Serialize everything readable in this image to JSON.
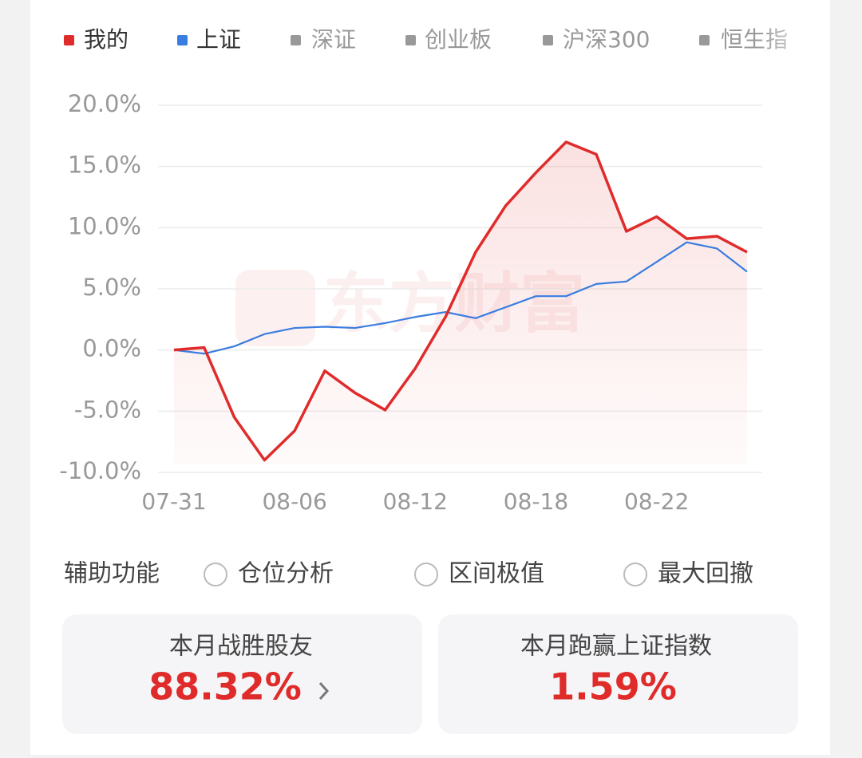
{
  "chart_data": {
    "type": "line",
    "categories": [
      "07-31",
      null,
      null,
      null,
      "08-06",
      null,
      null,
      null,
      "08-12",
      null,
      null,
      null,
      "08-18",
      null,
      null,
      null,
      "08-22",
      null,
      null,
      null
    ],
    "series": [
      {
        "name": "我的",
        "color": "#e02b2b",
        "values": [
          0.0,
          0.2,
          -5.5,
          -9.0,
          -6.6,
          -1.7,
          -3.5,
          -4.9,
          -1.5,
          2.7,
          8.0,
          11.8,
          14.5,
          17.0,
          16.0,
          9.7,
          10.9,
          9.1,
          9.3,
          8.0
        ]
      },
      {
        "name": "上证",
        "color": "#3a7de0",
        "values": [
          0.0,
          -0.3,
          0.3,
          1.3,
          1.8,
          1.9,
          1.8,
          2.2,
          2.7,
          3.1,
          2.6,
          3.5,
          4.4,
          4.4,
          5.4,
          5.6,
          7.2,
          8.8,
          8.3,
          6.4
        ]
      }
    ],
    "inactive_series": [
      {
        "name": "深证",
        "color": "#999999"
      },
      {
        "name": "创业板",
        "color": "#999999"
      },
      {
        "name": "沪深300",
        "color": "#999999"
      },
      {
        "name": "恒生指",
        "color": "#999999"
      }
    ],
    "ylim": [
      -10,
      20
    ],
    "yticks": [
      {
        "value": -10,
        "label": "-10.0%"
      },
      {
        "value": -5,
        "label": "-5.0%"
      },
      {
        "value": 0,
        "label": "0.0%"
      },
      {
        "value": 5,
        "label": "5.0%"
      },
      {
        "value": 10,
        "label": "10.0%"
      },
      {
        "value": 15,
        "label": "15.0%"
      },
      {
        "value": 20,
        "label": "20.0%"
      }
    ],
    "grid": true,
    "watermark": "东方财富"
  },
  "tools": {
    "title": "辅助功能",
    "options": [
      "仓位分析",
      "区间极值",
      "最大回撤"
    ]
  },
  "stats": [
    {
      "label": "本月战胜股友",
      "value": "88.32%"
    },
    {
      "label": "本月跑赢上证指数",
      "value": "1.59%"
    }
  ]
}
